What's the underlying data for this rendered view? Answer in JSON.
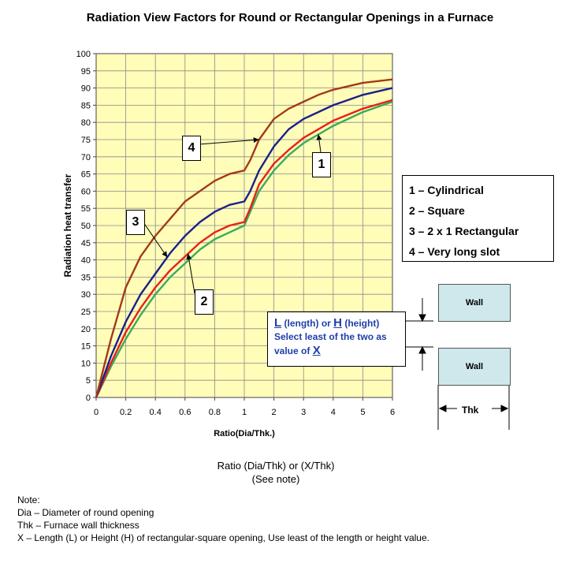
{
  "chart_data": {
    "type": "line",
    "title": "Radiation View Factors for Round or Rectangular Openings in a Furnace",
    "xlabel": "Ratio(Dia/Thk.)",
    "ylabel": "Radiation heat transfer",
    "ylim": [
      0,
      100
    ],
    "y_ticks": [
      "0",
      "5",
      "10",
      "15",
      "20",
      "25",
      "30",
      "35",
      "40",
      "45",
      "50",
      "55",
      "60",
      "65",
      "70",
      "75",
      "80",
      "85",
      "90",
      "95",
      "100"
    ],
    "x_ticks": [
      "0",
      "0.2",
      "0.4",
      "0.6",
      "0.8",
      "1",
      "2",
      "3",
      "4",
      "5",
      "6"
    ],
    "grid": true,
    "series": [
      {
        "label_number": "1",
        "color": "#3daa5a",
        "points": [
          [
            0,
            0
          ],
          [
            0.1,
            9
          ],
          [
            0.2,
            17
          ],
          [
            0.3,
            24
          ],
          [
            0.4,
            30
          ],
          [
            0.5,
            35
          ],
          [
            0.6,
            39
          ],
          [
            0.7,
            43
          ],
          [
            0.8,
            46
          ],
          [
            0.9,
            48
          ],
          [
            1,
            50
          ],
          [
            1.2,
            54
          ],
          [
            1.5,
            60
          ],
          [
            2,
            66
          ],
          [
            2.5,
            70.5
          ],
          [
            3,
            74
          ],
          [
            3.5,
            76.5
          ],
          [
            4,
            79
          ],
          [
            5,
            83
          ],
          [
            6,
            86
          ]
        ]
      },
      {
        "label_number": "2",
        "color": "#e8201a",
        "points": [
          [
            0,
            0
          ],
          [
            0.1,
            10
          ],
          [
            0.2,
            19
          ],
          [
            0.3,
            26
          ],
          [
            0.4,
            32
          ],
          [
            0.5,
            37
          ],
          [
            0.6,
            41
          ],
          [
            0.7,
            45
          ],
          [
            0.8,
            48
          ],
          [
            0.9,
            50
          ],
          [
            1,
            51
          ],
          [
            1.2,
            55
          ],
          [
            1.5,
            62
          ],
          [
            2,
            68
          ],
          [
            2.5,
            72
          ],
          [
            3,
            75.5
          ],
          [
            3.5,
            78
          ],
          [
            4,
            80.5
          ],
          [
            5,
            84
          ],
          [
            6,
            86.5
          ]
        ]
      },
      {
        "label_number": "3",
        "color": "#1c1f8c",
        "points": [
          [
            0,
            0
          ],
          [
            0.1,
            12
          ],
          [
            0.2,
            22
          ],
          [
            0.3,
            30
          ],
          [
            0.4,
            36
          ],
          [
            0.5,
            42
          ],
          [
            0.6,
            47
          ],
          [
            0.7,
            51
          ],
          [
            0.8,
            54
          ],
          [
            0.9,
            56
          ],
          [
            1,
            57
          ],
          [
            1.2,
            60
          ],
          [
            1.5,
            66
          ],
          [
            2,
            73
          ],
          [
            2.5,
            78
          ],
          [
            3,
            81
          ],
          [
            3.5,
            83
          ],
          [
            4,
            85
          ],
          [
            5,
            88
          ],
          [
            6,
            90
          ]
        ]
      },
      {
        "label_number": "4",
        "color": "#a23a1a",
        "points": [
          [
            0,
            0
          ],
          [
            0.1,
            17
          ],
          [
            0.2,
            32
          ],
          [
            0.3,
            41
          ],
          [
            0.4,
            47
          ],
          [
            0.5,
            52
          ],
          [
            0.6,
            57
          ],
          [
            0.7,
            60
          ],
          [
            0.8,
            63
          ],
          [
            0.9,
            65
          ],
          [
            1,
            66
          ],
          [
            1.2,
            69
          ],
          [
            1.5,
            75
          ],
          [
            2,
            81
          ],
          [
            2.5,
            84
          ],
          [
            3,
            86
          ],
          [
            3.5,
            88
          ],
          [
            4,
            89.5
          ],
          [
            5,
            91.5
          ],
          [
            6,
            92.5
          ]
        ]
      }
    ],
    "legend": [
      "1 – Cylindrical",
      "2 – Square",
      "3 – 2 x 1 Rectangular",
      "4 – Very long slot"
    ]
  },
  "callouts": [
    "1",
    "2",
    "3",
    "4"
  ],
  "wall_labels": {
    "top": "Wall",
    "bottom": "Wall",
    "thk": "Thk"
  },
  "x_note": {
    "l": "L",
    "l_text": " (length) or ",
    "h": "H",
    "h_text": " (height)",
    "line2": "Select least of the two as",
    "line3": "value of ",
    "x": "X"
  },
  "caption": {
    "line1": "Ratio (Dia/Thk) or (X/Thk)",
    "line2": "(See note)"
  },
  "notes": {
    "heading": "Note:",
    "dia": "Dia – Diameter of round opening",
    "thk": "Thk – Furnace wall thickness",
    "x": "X – Length (L) or Height (H) of rectangular-square opening,  Use least of the length or height value."
  }
}
